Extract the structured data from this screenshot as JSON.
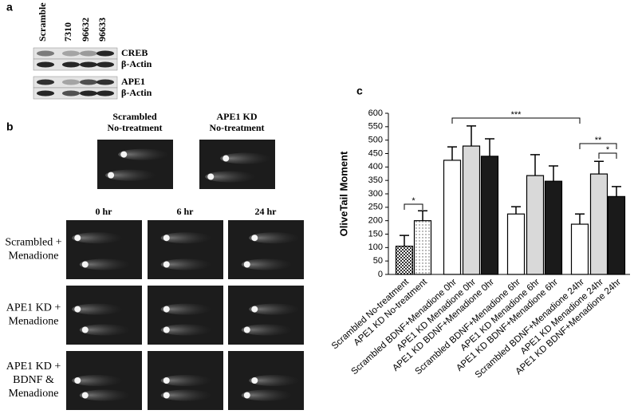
{
  "panel_a": {
    "label": "a",
    "lanes": [
      "Scramble",
      "7310",
      "96632",
      "96633"
    ],
    "blots": [
      "CREB",
      "β-Actin",
      "APE1",
      "β-Actin"
    ]
  },
  "panel_b": {
    "label": "b",
    "controls": [
      [
        "Scrambled",
        "No-treatment"
      ],
      [
        "APE1 KD",
        "No-treatment"
      ]
    ],
    "times": [
      "0 hr",
      "6 hr",
      "24 hr"
    ],
    "rows": [
      [
        "Scrambled +",
        "Menadione"
      ],
      [
        "APE1 KD +",
        "Menadione"
      ],
      [
        "APE1 KD +",
        "BDNF &",
        "Menadione"
      ]
    ]
  },
  "chart_data": {
    "type": "bar",
    "panel_label": "c",
    "y_label": "OliveTail Moment",
    "categories": [
      "Scrambled No-treatment",
      "APE1 KD No-treatment",
      "Scrambled BDNF+Menadione 0hr",
      "APE1 KD Menadione 0hr",
      "APE1 KD BDNF+Menadione 0hr",
      "Scrambled BDNF+Menadione 6hr",
      "APE1 KD Menadione 6hr",
      "APE1 KD BDNF+Menadione 6hr",
      "Scrambled BDNF+Menadione 24hr",
      "APE1 KD Menadione 24hr",
      "APE1 KD BDNF+Menadione 24hr"
    ],
    "values": [
      105,
      200,
      425,
      478,
      440,
      225,
      368,
      347,
      187,
      374,
      290
    ],
    "errors": [
      40,
      37,
      50,
      75,
      65,
      27,
      78,
      57,
      38,
      47,
      37
    ],
    "colors": [
      "#555555",
      "#eeeeee",
      "#ffffff",
      "#d9d9d9",
      "#1a1a1a",
      "#ffffff",
      "#d9d9d9",
      "#1a1a1a",
      "#ffffff",
      "#d9d9d9",
      "#1a1a1a"
    ],
    "ylim": [
      0,
      600
    ],
    "yticks": [
      0,
      50,
      100,
      150,
      200,
      250,
      300,
      350,
      400,
      450,
      500,
      550,
      600
    ],
    "annotations": [
      "*",
      "***",
      "**",
      "*"
    ]
  }
}
